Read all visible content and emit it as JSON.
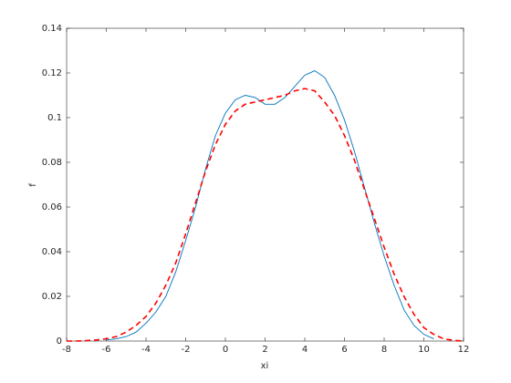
{
  "chart_data": {
    "type": "line",
    "xlabel": "xi",
    "ylabel": "f",
    "x": [
      -8,
      -7.5,
      -7,
      -6.5,
      -6,
      -5.5,
      -5,
      -4.5,
      -4,
      -3.5,
      -3,
      -2.5,
      -2,
      -1.5,
      -1,
      -0.5,
      0,
      0.5,
      1,
      1.5,
      2,
      2.5,
      3,
      3.5,
      4,
      4.5,
      5,
      5.5,
      6,
      6.5,
      7,
      7.5,
      8,
      8.5,
      9,
      9.5,
      10,
      10.5,
      11,
      11.5,
      12
    ],
    "series": [
      {
        "color": "#0072bd",
        "line_style": "solid",
        "values": [
          null,
          null,
          null,
          null,
          0.0005,
          0.001,
          0.002,
          0.004,
          0.008,
          0.013,
          0.02,
          0.031,
          0.045,
          0.06,
          0.077,
          0.092,
          0.102,
          0.108,
          0.11,
          0.109,
          0.106,
          0.106,
          0.109,
          0.114,
          0.119,
          0.121,
          0.118,
          0.11,
          0.099,
          0.085,
          0.069,
          0.053,
          0.038,
          0.025,
          0.014,
          0.007,
          0.003,
          0.001,
          null,
          null,
          null
        ]
      },
      {
        "color": "#ff0000",
        "line_style": "dashed",
        "values": [
          0,
          0,
          0.0002,
          0.0005,
          0.001,
          0.002,
          0.004,
          0.007,
          0.011,
          0.017,
          0.025,
          0.035,
          0.048,
          0.062,
          0.076,
          0.088,
          0.097,
          0.103,
          0.106,
          0.107,
          0.108,
          0.109,
          0.11,
          0.112,
          0.113,
          0.112,
          0.107,
          0.101,
          0.092,
          0.081,
          0.068,
          0.055,
          0.042,
          0.03,
          0.02,
          0.012,
          0.006,
          0.003,
          0.001,
          0.0003,
          0
        ]
      }
    ],
    "xlim": [
      -8,
      12
    ],
    "xticks": [
      -8,
      -6,
      -4,
      -2,
      0,
      2,
      4,
      6,
      8,
      10,
      12
    ],
    "ylim": [
      0,
      0.14
    ],
    "yticks": [
      0,
      0.02,
      0.04,
      0.06,
      0.08,
      0.1,
      0.12,
      0.14
    ]
  }
}
